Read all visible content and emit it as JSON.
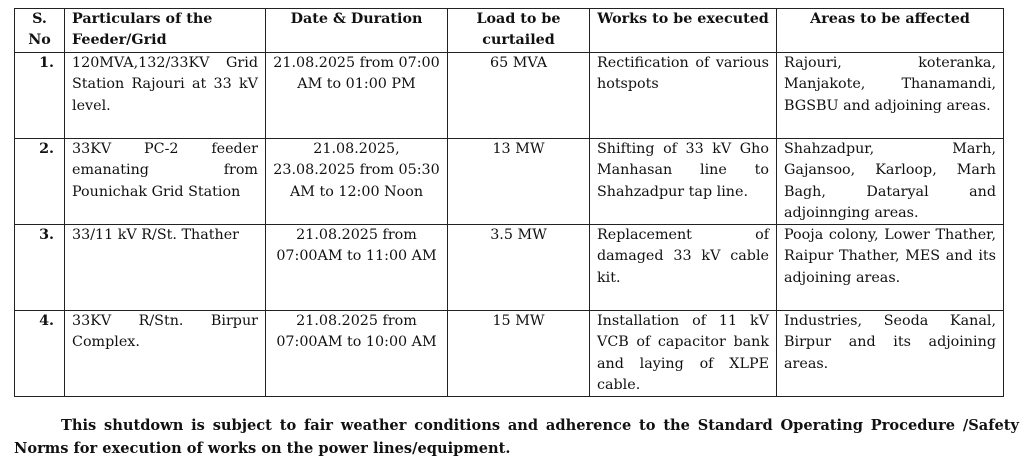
{
  "table": {
    "headers": [
      "S. No",
      "Particulars of the Feeder/Grid",
      "Date & Duration",
      "Load to be curtailed",
      "Works to be executed",
      "Areas to be affected"
    ],
    "rows": [
      {
        "sno": "1.",
        "feeder": "120MVA,132/33KV Grid Station Rajouri at 33 kV level.",
        "date": "21.08.2025 from 07:00 AM to 01:00 PM",
        "load": "65 MVA",
        "works": "Rectification of various hotspots",
        "areas": "Rajouri, koteranka, Manjakote, Thanamandi, BGSBU and adjoining areas."
      },
      {
        "sno": "2.",
        "feeder": "33KV PC-2 feeder emanating from Pounichak Grid Station",
        "date": "21.08.2025, 23.08.2025 from 05:30 AM to 12:00 Noon",
        "load": "13 MW",
        "works": "Shifting of 33 kV Gho Manhasan line to Shahzadpur tap line.",
        "areas": "Shahzadpur, Marh, Gajansoo, Karloop, Marh Bagh, Dataryal and adjoinnging areas."
      },
      {
        "sno": "3.",
        "feeder": "33/11 kV R/St. Thather",
        "date": "21.08.2025 from 07:00AM to 11:00 AM",
        "load": "3.5 MW",
        "works": "Replacement of damaged 33 kV cable kit.",
        "areas": "Pooja colony, Lower Thather, Raipur Thather, MES and its adjoining areas."
      },
      {
        "sno": "4.",
        "feeder": "33KV R/Stn. Birpur Complex.",
        "date": "21.08.2025 from 07:00AM to 10:00 AM",
        "load": "15 MW",
        "works": "Installation of 11 kV VCB of capacitor bank and laying of XLPE cable.",
        "areas": "Industries, Seoda Kanal, Birpur and its adjoining areas."
      }
    ]
  },
  "note": "This shutdown is subject to fair weather conditions and adherence to the Standard Operating Procedure /Safety Norms for execution of works on the power lines/equipment."
}
